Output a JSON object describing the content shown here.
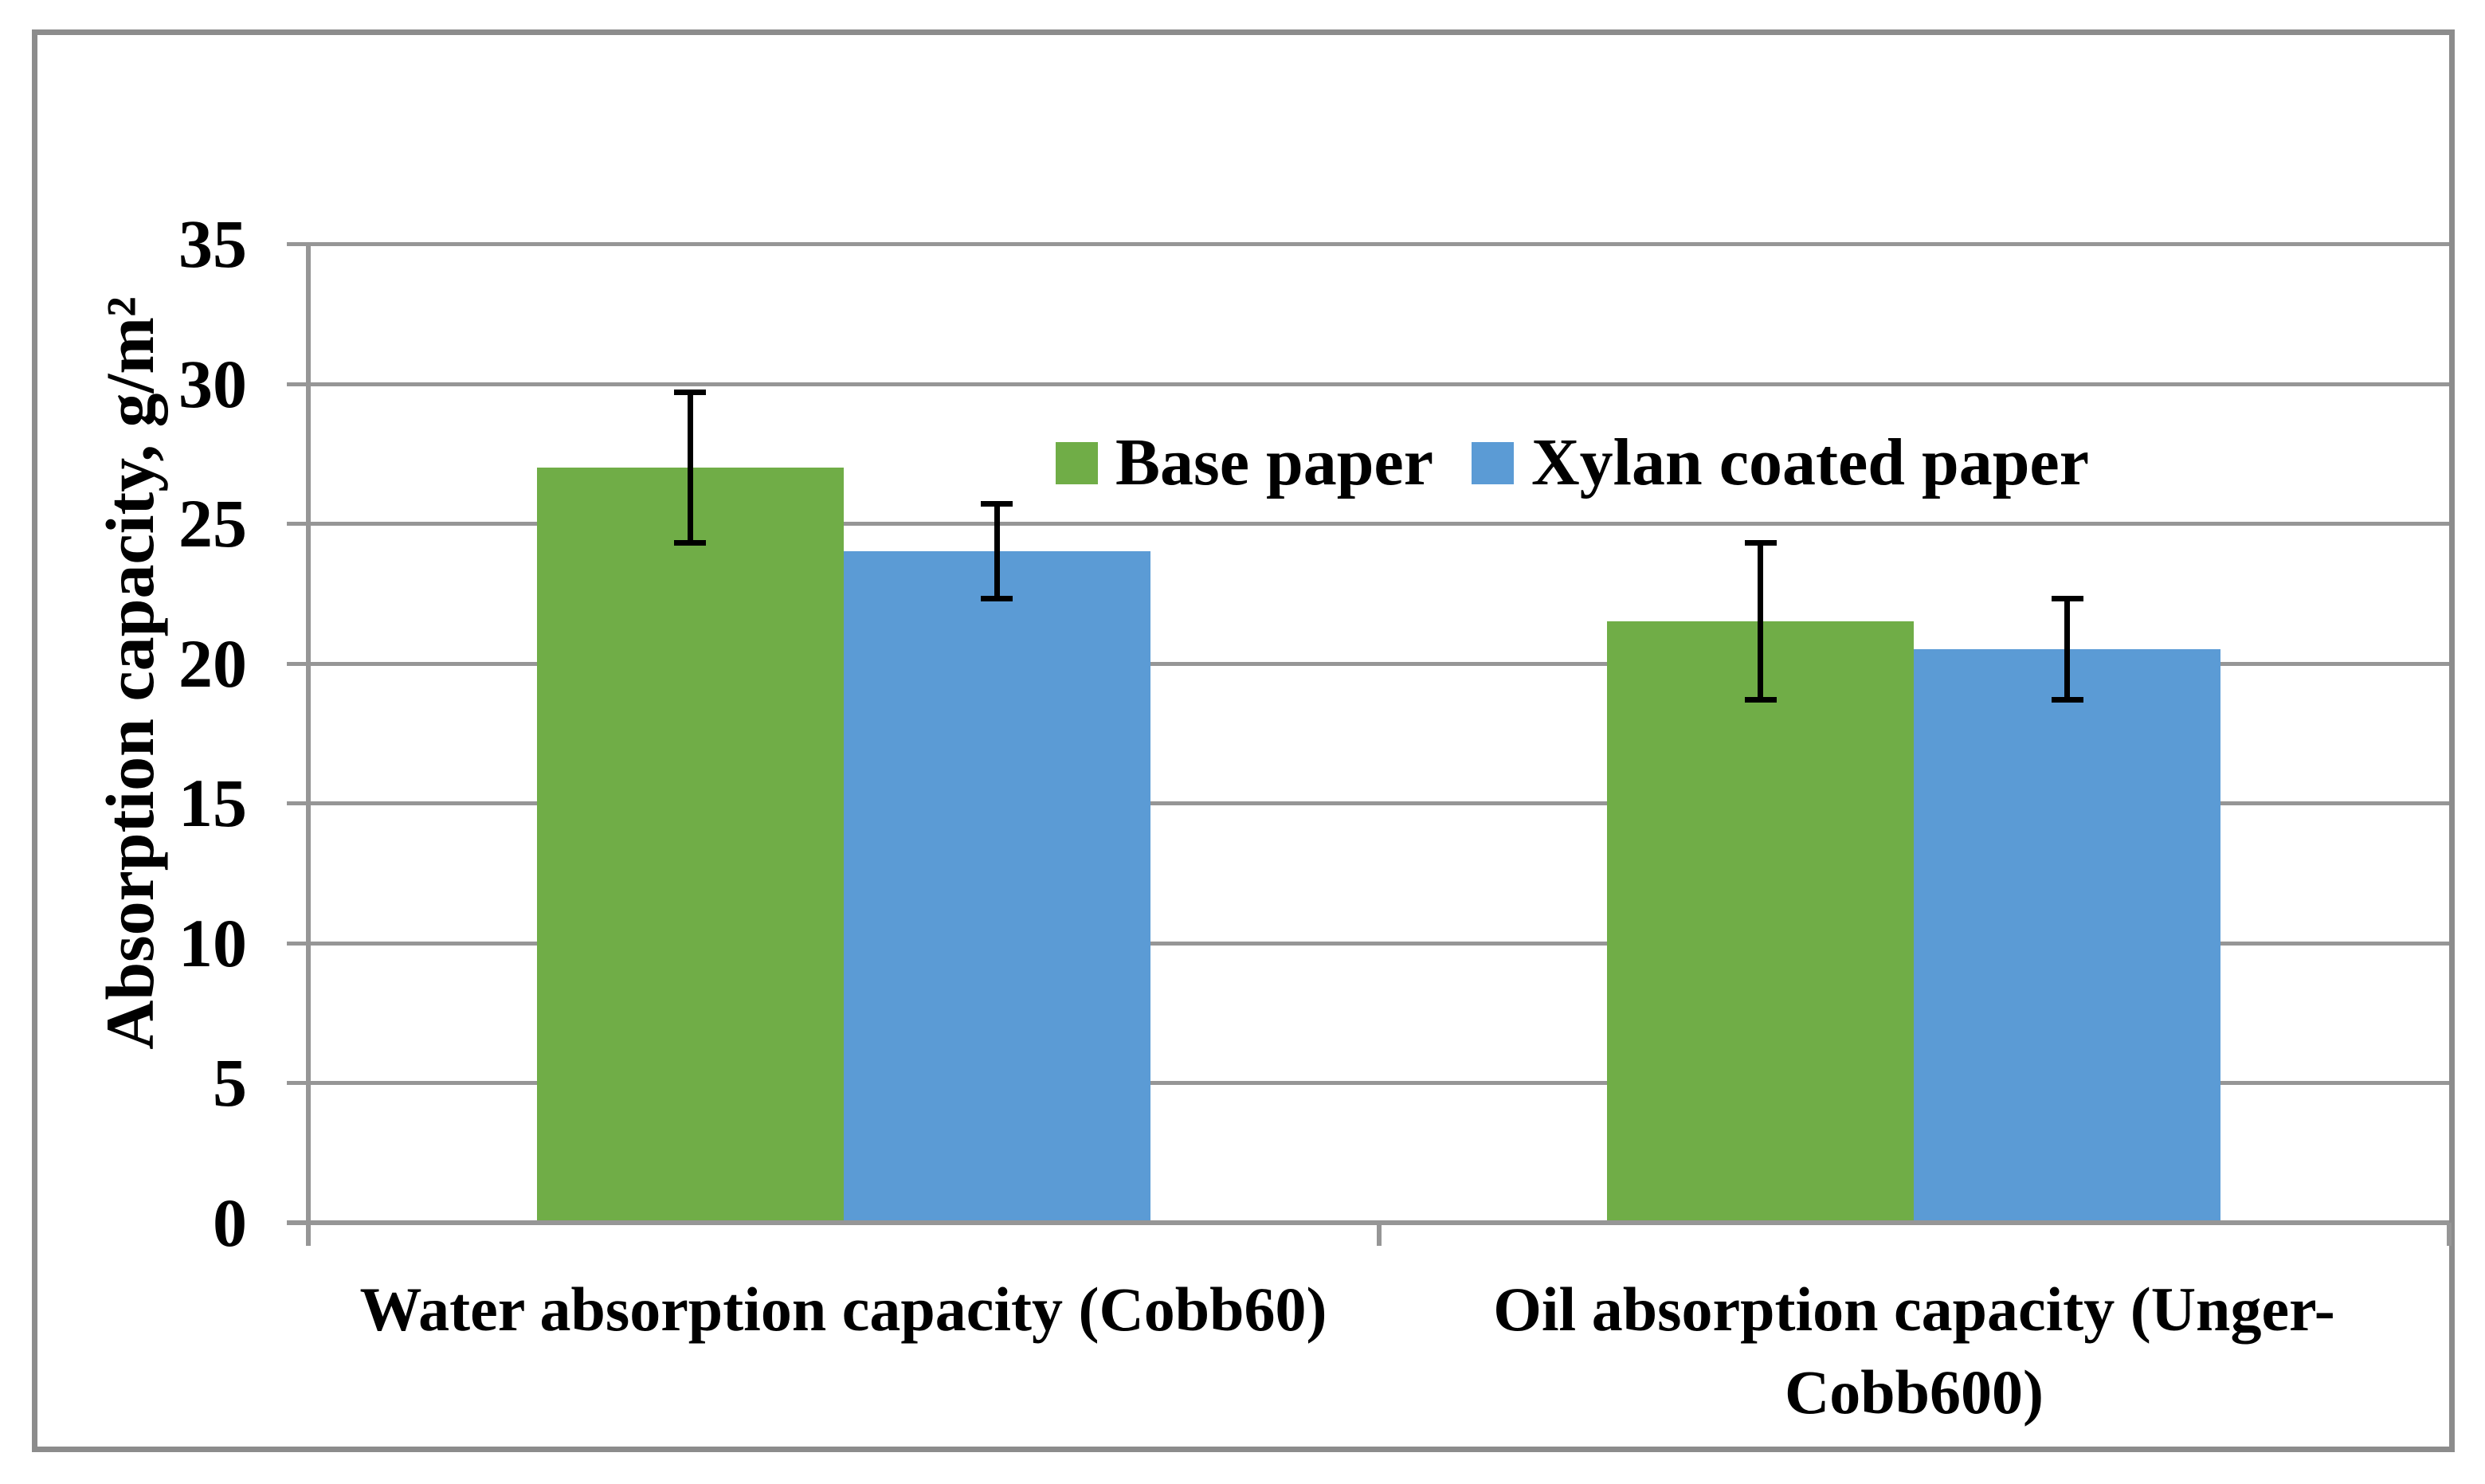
{
  "chart_data": {
    "type": "bar",
    "title": "",
    "categories": [
      "Water absorption capacity (Cobb60)",
      "Oil absorption capacity (Unger-\nCobb600)"
    ],
    "series": [
      {
        "name": "Base paper",
        "color": "#70AD47",
        "values": [
          27.0,
          21.5
        ],
        "errors": [
          2.7,
          2.8
        ]
      },
      {
        "name": "Xylan coated paper",
        "color": "#5B9BD5",
        "values": [
          24.0,
          20.5
        ],
        "errors": [
          1.7,
          1.8
        ]
      }
    ],
    "xlabel": "",
    "ylabel": "Absorption capacity, g/m²",
    "ylim": [
      0,
      35
    ],
    "ytick_step": 5,
    "yticks": [
      "0",
      "5",
      "10",
      "15",
      "20",
      "25",
      "30",
      "35"
    ],
    "grid": "horizontal",
    "legend_position": "inside-top-center-right",
    "colors": {
      "axis_and_grid": "#969696",
      "frame_border": "#8C8C8C",
      "error_bar": "#000000",
      "text": "#000000",
      "background": "#FFFFFF"
    }
  }
}
